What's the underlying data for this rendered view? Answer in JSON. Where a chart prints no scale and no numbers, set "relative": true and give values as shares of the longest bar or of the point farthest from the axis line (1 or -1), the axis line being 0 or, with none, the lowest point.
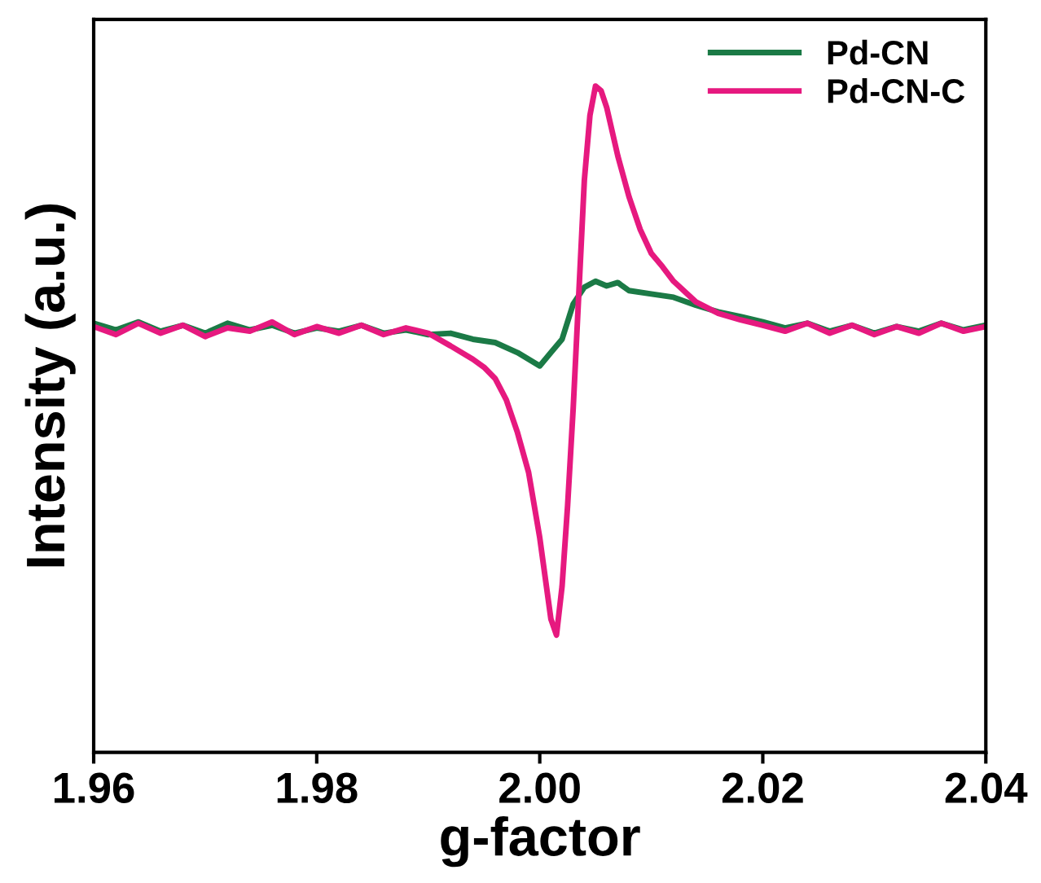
{
  "chart_data": {
    "type": "line",
    "xlabel": "g-factor",
    "ylabel": "Intensity (a.u.)",
    "relative": true,
    "xlim": [
      1.96,
      2.04
    ],
    "xticks": [
      {
        "value": 1.96,
        "label": "1.96"
      },
      {
        "value": 1.98,
        "label": "1.98"
      },
      {
        "value": 2.0,
        "label": "2.00"
      },
      {
        "value": 2.02,
        "label": "2.02"
      },
      {
        "value": 2.04,
        "label": "2.04"
      }
    ],
    "tick_labels": "x",
    "legend": "top right",
    "grid": false,
    "line_style": "solid",
    "marker": "none",
    "series": [
      {
        "name": "Pd-CN",
        "color": "#1b7a46",
        "x": [
          1.96,
          1.962,
          1.964,
          1.966,
          1.968,
          1.97,
          1.972,
          1.974,
          1.976,
          1.978,
          1.98,
          1.982,
          1.984,
          1.986,
          1.988,
          1.99,
          1.992,
          1.994,
          1.996,
          1.998,
          1.999,
          2.0,
          2.001,
          2.002,
          2.003,
          2.004,
          2.005,
          2.006,
          2.007,
          2.008,
          2.01,
          2.012,
          2.014,
          2.016,
          2.018,
          2.02,
          2.022,
          2.024,
          2.026,
          2.028,
          2.03,
          2.032,
          2.034,
          2.036,
          2.038,
          2.04
        ],
        "values": [
          0.644,
          0.634,
          0.646,
          0.632,
          0.641,
          0.629,
          0.644,
          0.634,
          0.641,
          0.629,
          0.637,
          0.632,
          0.641,
          0.629,
          0.634,
          0.627,
          0.629,
          0.62,
          0.615,
          0.6,
          0.59,
          0.58,
          0.6,
          0.62,
          0.673,
          0.698,
          0.707,
          0.7,
          0.705,
          0.693,
          0.688,
          0.683,
          0.671,
          0.661,
          0.654,
          0.646,
          0.637,
          0.644,
          0.632,
          0.641,
          0.629,
          0.639,
          0.632,
          0.644,
          0.634,
          0.641
        ]
      },
      {
        "name": "Pd-CN-C",
        "color": "#e6197f",
        "x": [
          1.96,
          1.962,
          1.964,
          1.966,
          1.968,
          1.97,
          1.972,
          1.974,
          1.976,
          1.978,
          1.98,
          1.982,
          1.984,
          1.986,
          1.988,
          1.99,
          1.992,
          1.994,
          1.995,
          1.996,
          1.997,
          1.998,
          1.999,
          2.0,
          2.001,
          2.0015,
          2.002,
          2.0025,
          2.003,
          2.0035,
          2.004,
          2.0045,
          2.005,
          2.0055,
          2.006,
          2.007,
          2.008,
          2.009,
          2.01,
          2.011,
          2.012,
          2.014,
          2.016,
          2.018,
          2.02,
          2.022,
          2.024,
          2.026,
          2.028,
          2.03,
          2.032,
          2.034,
          2.036,
          2.038,
          2.04
        ],
        "values": [
          0.639,
          0.627,
          0.644,
          0.629,
          0.641,
          0.624,
          0.637,
          0.632,
          0.646,
          0.627,
          0.639,
          0.629,
          0.641,
          0.627,
          0.637,
          0.629,
          0.61,
          0.59,
          0.578,
          0.561,
          0.529,
          0.48,
          0.42,
          0.322,
          0.2,
          0.176,
          0.249,
          0.371,
          0.517,
          0.688,
          0.859,
          0.956,
          1.0,
          0.993,
          0.968,
          0.895,
          0.834,
          0.785,
          0.749,
          0.729,
          0.707,
          0.676,
          0.659,
          0.649,
          0.641,
          0.632,
          0.644,
          0.629,
          0.641,
          0.627,
          0.639,
          0.629,
          0.644,
          0.632,
          0.639
        ]
      }
    ]
  }
}
